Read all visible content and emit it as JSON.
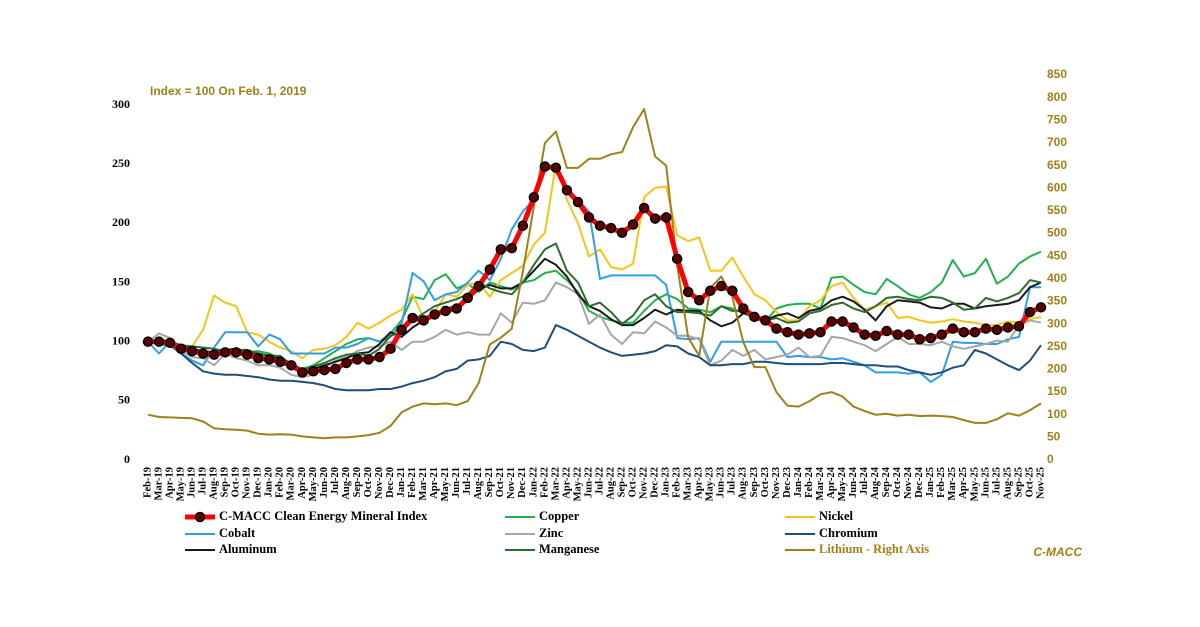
{
  "chart_data": {
    "type": "line",
    "annotations": [
      "Index = 100 On Feb. 1, 2019",
      "C-MACC"
    ],
    "categories": [
      "Feb-19",
      "Mar-19",
      "Apr-19",
      "May-19",
      "Jun-19",
      "Jul-19",
      "Aug-19",
      "Sep-19",
      "Oct-19",
      "Nov-19",
      "Dec-19",
      "Jan-20",
      "Feb-20",
      "Mar-20",
      "Apr-20",
      "May-20",
      "Jun-20",
      "Jul-20",
      "Aug-20",
      "Sep-20",
      "Oct-20",
      "Nov-20",
      "Dec-20",
      "Jan-21",
      "Feb-21",
      "Mar-21",
      "Apr-21",
      "May-21",
      "Jun-21",
      "Jul-21",
      "Aug-21",
      "Sep-21",
      "Oct-21",
      "Nov-21",
      "Dec-21",
      "Jan-22",
      "Feb-22",
      "Mar-22",
      "Apr-22",
      "May-22",
      "Jun-22",
      "Jul-22",
      "Aug-22",
      "Sep-22",
      "Oct-22",
      "Nov-22",
      "Dec-22",
      "Jan-23",
      "Feb-23",
      "Mar-23",
      "Apr-23",
      "May-23",
      "Jun-23",
      "Jul-23",
      "Aug-23",
      "Sep-23",
      "Oct-23",
      "Nov-23",
      "Dec-23",
      "Jan-24",
      "Feb-24",
      "Mar-24",
      "Apr-24",
      "May-24",
      "Jun-24",
      "Jul-24",
      "Aug-24",
      "Sep-24",
      "Oct-24",
      "Nov-24",
      "Dec-24",
      "Jan-25",
      "Feb-25",
      "Mar-25",
      "Apr-25",
      "May-25",
      "Jun-25",
      "Jul-25",
      "Aug-25",
      "Sep-25",
      "Oct-25",
      "Nov-25"
    ],
    "ylim": [
      0,
      300
    ],
    "yticks": [
      0,
      50,
      100,
      150,
      200,
      250,
      300
    ],
    "y2lim": [
      0,
      850
    ],
    "y2ticks": [
      0,
      50,
      100,
      150,
      200,
      250,
      300,
      350,
      400,
      450,
      500,
      550,
      600,
      650,
      700,
      750,
      800,
      850
    ],
    "grid": false,
    "series": [
      {
        "name": "C-MACC Clean Energy Mineral Index",
        "color": "#ff0000",
        "marker": "circle",
        "values": [
          100,
          100,
          99,
          94,
          92,
          90,
          89,
          91,
          91,
          89,
          86,
          85,
          83,
          80,
          74,
          75,
          76,
          77,
          82,
          85,
          85,
          87,
          94,
          110,
          120,
          118,
          123,
          126,
          128,
          137,
          147,
          161,
          178,
          179,
          198,
          222,
          248,
          247,
          228,
          218,
          205,
          198,
          196,
          192,
          199,
          213,
          204,
          205,
          170,
          142,
          135,
          143,
          147,
          143,
          128,
          121,
          118,
          111,
          108,
          106,
          107,
          108,
          117,
          117,
          112,
          106,
          105,
          109,
          106,
          106,
          102,
          103,
          106,
          111,
          108,
          108,
          111,
          110,
          112,
          113,
          125,
          129
        ]
      },
      {
        "name": "Copper",
        "color": "#22b14c",
        "values": [
          100,
          100,
          98,
          93,
          91,
          89,
          88,
          90,
          90,
          91,
          92,
          90,
          86,
          80,
          77,
          80,
          86,
          92,
          98,
          102,
          103,
          100,
          107,
          118,
          138,
          136,
          152,
          157,
          145,
          149,
          142,
          150,
          147,
          144,
          150,
          152,
          158,
          160,
          152,
          142,
          126,
          121,
          118,
          116,
          116,
          126,
          135,
          140,
          136,
          128,
          127,
          125,
          130,
          128,
          124,
          120,
          117,
          128,
          131,
          132,
          132,
          128,
          154,
          155,
          148,
          142,
          140,
          153,
          147,
          140,
          137,
          142,
          150,
          169,
          155,
          158,
          170,
          149,
          155,
          166,
          172,
          176
        ]
      },
      {
        "name": "Nickel",
        "color": "#f5c518",
        "values": [
          100,
          101,
          97,
          92,
          96,
          110,
          139,
          133,
          130,
          108,
          106,
          100,
          95,
          92,
          86,
          93,
          94,
          97,
          104,
          116,
          111,
          116,
          122,
          127,
          140,
          120,
          125,
          140,
          138,
          148,
          150,
          138,
          152,
          158,
          164,
          182,
          192,
          250,
          220,
          200,
          172,
          178,
          163,
          161,
          166,
          222,
          230,
          231,
          190,
          185,
          188,
          160,
          160,
          171,
          155,
          140,
          135,
          125,
          118,
          118,
          130,
          135,
          147,
          150,
          137,
          127,
          130,
          133,
          120,
          121,
          118,
          116,
          117,
          119,
          117,
          116,
          114,
          114,
          117,
          116,
          119,
          121
        ]
      },
      {
        "name": "Cobalt",
        "color": "#2e9fe6",
        "values": [
          100,
          90,
          100,
          90,
          84,
          80,
          95,
          108,
          108,
          108,
          96,
          106,
          102,
          90,
          90,
          90,
          90,
          95,
          95,
          98,
          103,
          100,
          104,
          115,
          158,
          151,
          135,
          140,
          142,
          150,
          160,
          152,
          170,
          195,
          210,
          220,
          245,
          250,
          230,
          220,
          210,
          153,
          156,
          156,
          156,
          156,
          156,
          148,
          103,
          102,
          103,
          83,
          100,
          100,
          100,
          100,
          100,
          100,
          87,
          88,
          87,
          87,
          85,
          86,
          83,
          80,
          74,
          74,
          74,
          73,
          74,
          66,
          72,
          100,
          99,
          99,
          98,
          98,
          102,
          104,
          146,
          146
        ]
      },
      {
        "name": "Zinc",
        "color": "#a6a6a6",
        "values": [
          100,
          107,
          103,
          92,
          87,
          86,
          80,
          90,
          86,
          84,
          80,
          80,
          78,
          72,
          70,
          72,
          78,
          84,
          87,
          92,
          95,
          96,
          100,
          93,
          100,
          100,
          104,
          110,
          106,
          108,
          106,
          106,
          124,
          116,
          133,
          132,
          135,
          150,
          146,
          140,
          115,
          123,
          106,
          98,
          108,
          107,
          117,
          112,
          105,
          105,
          102,
          80,
          84,
          93,
          88,
          93,
          85,
          87,
          89,
          95,
          87,
          88,
          104,
          103,
          100,
          97,
          92,
          98,
          104,
          98,
          98,
          97,
          100,
          96,
          94,
          96,
          98,
          101,
          100,
          114,
          118,
          116
        ]
      },
      {
        "name": "Chromium",
        "color": "#1f4e79",
        "values": [
          100,
          98,
          97,
          90,
          82,
          75,
          73,
          72,
          72,
          71,
          70,
          68,
          67,
          67,
          66,
          65,
          63,
          60,
          59,
          59,
          59,
          60,
          60,
          62,
          65,
          67,
          70,
          75,
          77,
          84,
          85,
          88,
          100,
          98,
          93,
          92,
          95,
          114,
          110,
          105,
          100,
          95,
          91,
          88,
          89,
          90,
          92,
          97,
          96,
          90,
          87,
          80,
          80,
          81,
          81,
          83,
          83,
          82,
          81,
          81,
          81,
          81,
          82,
          82,
          81,
          80,
          80,
          79,
          79,
          76,
          74,
          72,
          74,
          78,
          80,
          93,
          90,
          85,
          80,
          76,
          84,
          97
        ]
      },
      {
        "name": "Aluminum",
        "color": "#1a1a1a",
        "values": [
          100,
          102,
          100,
          97,
          94,
          92,
          91,
          93,
          94,
          91,
          90,
          88,
          86,
          82,
          76,
          77,
          80,
          83,
          86,
          90,
          91,
          98,
          108,
          104,
          112,
          118,
          124,
          128,
          130,
          136,
          144,
          148,
          145,
          145,
          150,
          160,
          170,
          165,
          155,
          140,
          130,
          126,
          119,
          114,
          114,
          120,
          127,
          123,
          127,
          126,
          126,
          118,
          113,
          116,
          124,
          122,
          118,
          122,
          124,
          120,
          126,
          128,
          135,
          138,
          134,
          127,
          118,
          130,
          135,
          134,
          133,
          129,
          128,
          132,
          132,
          128,
          130,
          131,
          132,
          135,
          146,
          150
        ]
      },
      {
        "name": "Manganese",
        "color": "#2e6b30",
        "values": [
          100,
          100,
          100,
          97,
          96,
          95,
          94,
          92,
          93,
          93,
          90,
          88,
          88,
          80,
          76,
          79,
          82,
          86,
          89,
          90,
          88,
          94,
          105,
          108,
          118,
          124,
          130,
          133,
          136,
          140,
          150,
          145,
          142,
          140,
          150,
          165,
          178,
          183,
          160,
          150,
          130,
          133,
          125,
          115,
          122,
          135,
          140,
          130,
          125,
          125,
          124,
          122,
          130,
          126,
          126,
          120,
          118,
          120,
          116,
          117,
          124,
          126,
          131,
          133,
          128,
          125,
          130,
          137,
          138,
          136,
          135,
          138,
          137,
          133,
          127,
          128,
          137,
          134,
          137,
          141,
          152,
          150
        ]
      },
      {
        "name": "Lithium - Right Axis",
        "color": "#a0801a",
        "axis": "y2",
        "values": [
          100,
          95,
          94,
          93,
          92,
          85,
          70,
          68,
          67,
          65,
          58,
          56,
          57,
          56,
          52,
          50,
          48,
          50,
          50,
          52,
          55,
          60,
          75,
          105,
          118,
          125,
          123,
          125,
          121,
          130,
          170,
          255,
          270,
          290,
          415,
          560,
          700,
          725,
          645,
          645,
          665,
          665,
          675,
          680,
          735,
          775,
          670,
          650,
          430,
          270,
          230,
          380,
          405,
          360,
          260,
          205,
          205,
          150,
          120,
          118,
          130,
          145,
          150,
          140,
          118,
          108,
          100,
          102,
          98,
          100,
          97,
          98,
          97,
          95,
          88,
          82,
          82,
          90,
          103,
          98,
          110,
          125
        ]
      }
    ]
  }
}
